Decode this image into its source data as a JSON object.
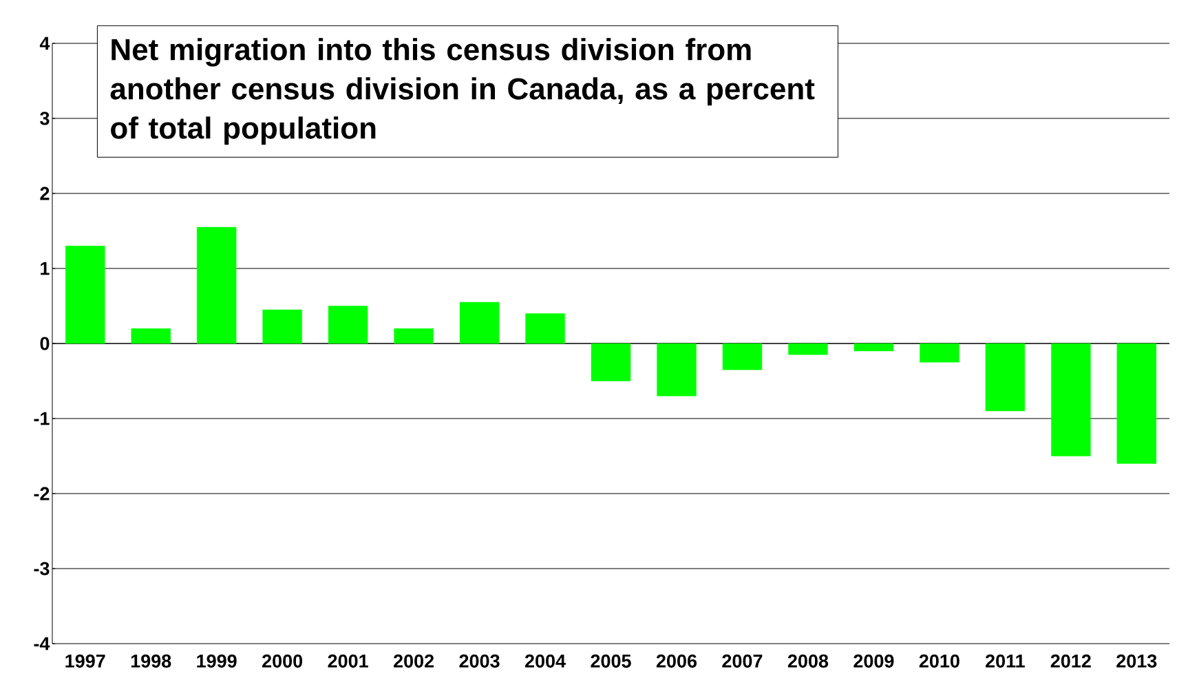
{
  "chart_data": {
    "type": "bar",
    "title": "Net migration into this census division from another census division in Canada, as a percent of total population",
    "categories": [
      "1997",
      "1998",
      "1999",
      "2000",
      "2001",
      "2002",
      "2003",
      "2004",
      "2005",
      "2006",
      "2007",
      "2008",
      "2009",
      "2010",
      "2011",
      "2012",
      "2013"
    ],
    "values": [
      1.3,
      0.2,
      1.55,
      0.45,
      0.5,
      0.2,
      0.55,
      0.4,
      -0.5,
      -0.7,
      -0.35,
      -0.15,
      -0.1,
      -0.25,
      -0.9,
      -1.5,
      -1.6
    ],
    "color": "#00ff00",
    "ylim": [
      -4,
      4
    ],
    "yticks": [
      -4,
      -3,
      -2,
      -1,
      0,
      1,
      2,
      3,
      4
    ],
    "grid": "y"
  }
}
